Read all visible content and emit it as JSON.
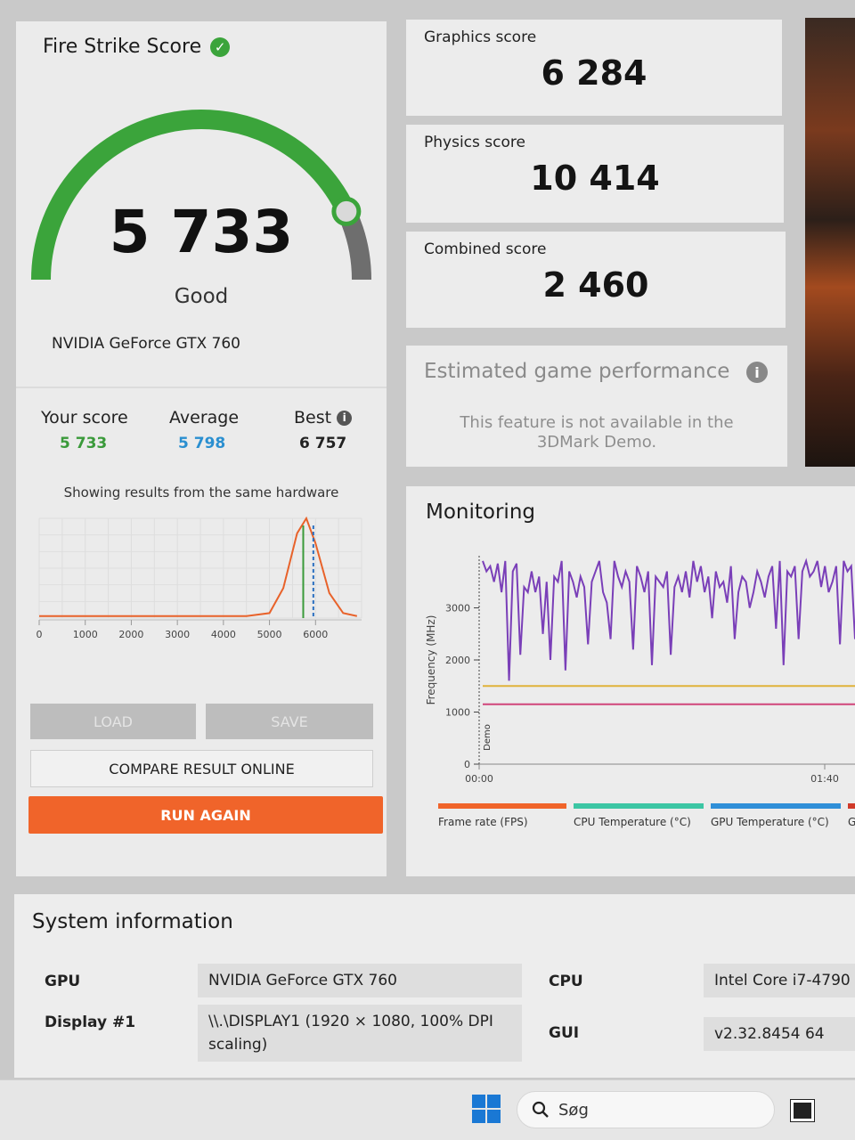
{
  "score_panel": {
    "title": "Fire Strike Score",
    "score": "5 733",
    "rating": "Good",
    "gauge_level": 0.86,
    "gpu": "NVIDIA GeForce GTX 760",
    "your_score_label": "Your score",
    "your_score": "5 733",
    "average_label": "Average",
    "average": "5 798",
    "best_label": "Best",
    "best": "6 757",
    "showing_text": "Showing results from the same hardware",
    "buttons": {
      "load": "LOAD",
      "save": "SAVE",
      "compare": "COMPARE RESULT ONLINE",
      "run_again": "RUN AGAIN"
    }
  },
  "scores": {
    "graphics_label": "Graphics score",
    "graphics": "6 284",
    "physics_label": "Physics score",
    "physics": "10 414",
    "combined_label": "Combined score",
    "combined": "2 460"
  },
  "estimated": {
    "title": "Estimated game performance",
    "message_line1": "This feature is not available in the",
    "message_line2": "3DMark Demo."
  },
  "monitoring": {
    "title": "Monitoring",
    "legend": [
      "Frame rate (FPS)",
      "CPU Temperature (°C)",
      "GPU Temperature (°C)",
      "G"
    ]
  },
  "system_info": {
    "title": "System information",
    "gpu_label": "GPU",
    "gpu": "NVIDIA GeForce GTX 760",
    "display_label": "Display #1",
    "display_line1": "\\\\.\\DISPLAY1 (1920 × 1080, 100% DPI",
    "display_line2": "scaling)",
    "cpu_label": "CPU",
    "cpu": "Intel Core i7-4790",
    "gui_label": "GUI",
    "gui": "v2.32.8454 64"
  },
  "taskbar": {
    "search_placeholder": "Søg"
  },
  "colors": {
    "accent_orange": "#f0642a",
    "gauge_green": "#3ba43b",
    "your_score_green": "#3a9a3a",
    "average_blue": "#2a8fd0",
    "fps_line": "#f0642a",
    "cpu_temp": "#3cc6a4",
    "gpu_temp": "#2f8fd8",
    "freq_line": "#7a3fb8"
  },
  "chart_data": [
    {
      "type": "line",
      "title": "",
      "x": [
        0,
        500,
        1000,
        1500,
        2000,
        2500,
        3000,
        3500,
        4000,
        4500,
        5000,
        5300,
        5600,
        5800,
        6000,
        6300,
        6600,
        6900
      ],
      "series": [
        {
          "values": [
            0.02,
            0.02,
            0.02,
            0.02,
            0.02,
            0.02,
            0.02,
            0.02,
            0.02,
            0.02,
            0.05,
            0.3,
            0.85,
            1.0,
            0.75,
            0.25,
            0.05,
            0.02
          ]
        }
      ],
      "xticks": [
        "0",
        "1000",
        "2000",
        "3000",
        "4000",
        "5000",
        "6000"
      ],
      "xlim": [
        0,
        7000
      ],
      "markers": {
        "your_score": 5733,
        "average": 5798
      }
    },
    {
      "type": "line",
      "title": "",
      "ylabel": "Frequency (MHz)",
      "yticks": [
        "0",
        "1000",
        "2000",
        "3000"
      ],
      "ylim": [
        0,
        4000
      ],
      "xticks": [
        "00:00",
        "01:40"
      ],
      "marker_label": "Demo",
      "series": [
        {
          "name": "",
          "values": [
            3900,
            3700,
            3800,
            3500,
            3850,
            3300,
            3900,
            1600,
            3700,
            3850,
            2100,
            3400,
            3300,
            3700,
            3300,
            3600,
            2500,
            3500,
            2000,
            3600,
            3500,
            3900,
            1800,
            3700,
            3500,
            3200,
            3600,
            3400,
            2300,
            3500,
            3700,
            3900,
            3300,
            3100,
            2400,
            3900,
            3600,
            3400,
            3700,
            3500,
            2200,
            3800,
            3600,
            3300,
            3700,
            1900,
            3600,
            3500,
            3400,
            3700,
            2100,
            3400,
            3600,
            3300,
            3700,
            3200,
            3900,
            3500,
            3800,
            3300,
            3600,
            2800,
            3700,
            3400,
            3500,
            3100,
            3800,
            2400,
            3300,
            3600,
            3500,
            3000,
            3300,
            3700,
            3500,
            3200,
            3600,
            3800,
            2600,
            3900,
            1900,
            3700,
            3600,
            3800,
            2400,
            3700,
            3900,
            3600,
            3700,
            3900,
            3400,
            3800,
            3300,
            3500,
            3800,
            2300,
            3900,
            3700,
            3800,
            2400
          ]
        },
        {
          "name": "",
          "values": [
            1500,
            1500
          ]
        },
        {
          "name": "",
          "values": [
            1150,
            1150
          ]
        }
      ]
    }
  ]
}
